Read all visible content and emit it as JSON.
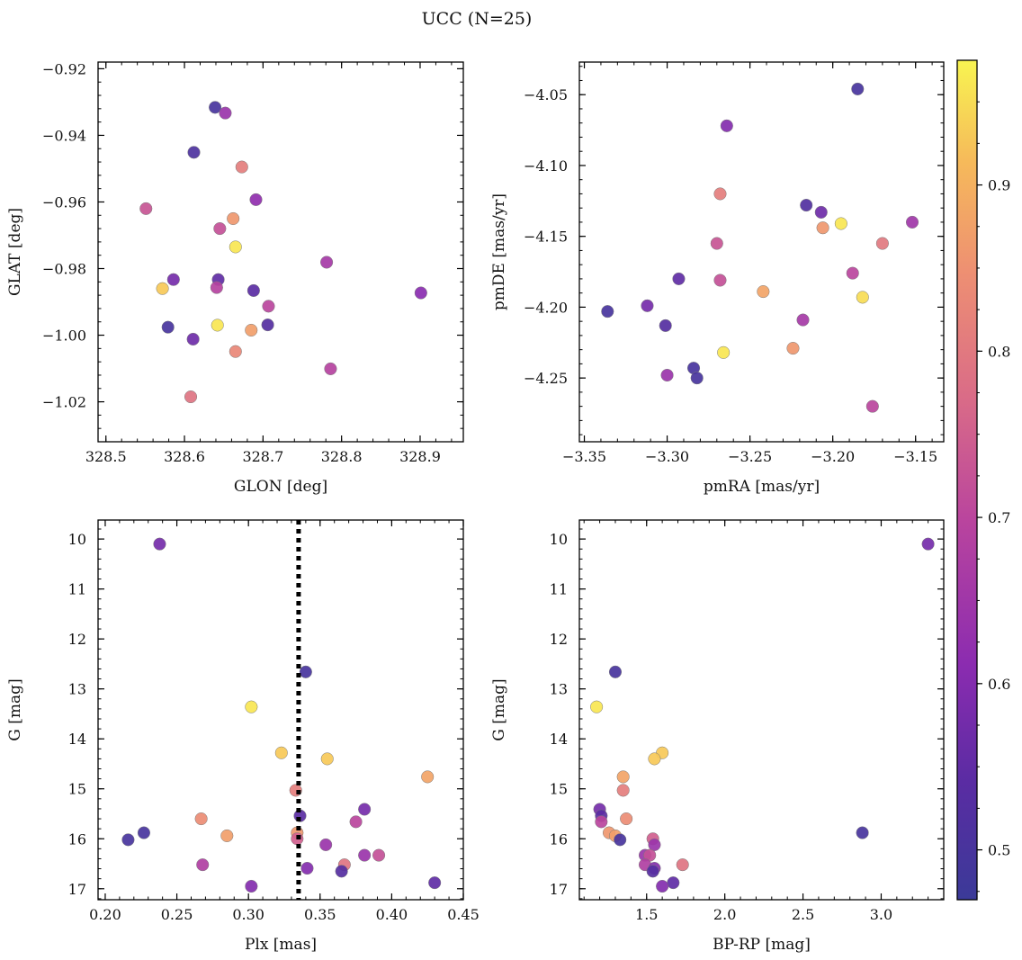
{
  "figure": {
    "title": "UCC (N=25)"
  },
  "colormap": {
    "name": "plasma",
    "range": [
      0.47,
      0.975
    ],
    "ticks": [
      0.5,
      0.6,
      0.7,
      0.8,
      0.9
    ],
    "tick_labels": [
      "0.5",
      "0.6",
      "0.7",
      "0.8",
      "0.9"
    ]
  },
  "chart_data": [
    {
      "type": "scatter",
      "title": "",
      "xlabel": "GLON [deg]",
      "ylabel": "GLAT [deg]",
      "xlim": [
        328.49,
        328.955
      ],
      "ylim": [
        -1.032,
        -0.918
      ],
      "y_inverted": false,
      "xticks": [
        328.5,
        328.6,
        328.7,
        328.8,
        328.9
      ],
      "xtick_labels": [
        "328.5",
        "328.6",
        "328.7",
        "328.8",
        "328.9"
      ],
      "yticks": [
        -1.02,
        -1.0,
        -0.98,
        -0.96,
        -0.94,
        -0.92
      ],
      "ytick_labels": [
        "−1.02",
        "−1.00",
        "−0.98",
        "−0.96",
        "−0.94",
        "−0.92"
      ],
      "points": [
        {
          "x": 328.639,
          "y": -0.9316,
          "c": 0.5
        },
        {
          "x": 328.652,
          "y": -0.9333,
          "c": 0.64
        },
        {
          "x": 328.612,
          "y": -0.9451,
          "c": 0.51
        },
        {
          "x": 328.673,
          "y": -0.9495,
          "c": 0.81
        },
        {
          "x": 328.691,
          "y": -0.9593,
          "c": 0.62
        },
        {
          "x": 328.551,
          "y": -0.962,
          "c": 0.73
        },
        {
          "x": 328.662,
          "y": -0.965,
          "c": 0.86
        },
        {
          "x": 328.645,
          "y": -0.968,
          "c": 0.72
        },
        {
          "x": 328.665,
          "y": -0.9735,
          "c": 0.96
        },
        {
          "x": 328.781,
          "y": -0.9781,
          "c": 0.66
        },
        {
          "x": 328.586,
          "y": -0.9833,
          "c": 0.58
        },
        {
          "x": 328.643,
          "y": -0.9833,
          "c": 0.55
        },
        {
          "x": 328.572,
          "y": -0.986,
          "c": 0.93
        },
        {
          "x": 328.641,
          "y": -0.9857,
          "c": 0.69
        },
        {
          "x": 328.688,
          "y": -0.9866,
          "c": 0.54
        },
        {
          "x": 328.901,
          "y": -0.9873,
          "c": 0.61
        },
        {
          "x": 328.707,
          "y": -0.9913,
          "c": 0.7
        },
        {
          "x": 328.579,
          "y": -0.9976,
          "c": 0.5
        },
        {
          "x": 328.642,
          "y": -0.997,
          "c": 0.96
        },
        {
          "x": 328.706,
          "y": -0.9969,
          "c": 0.53
        },
        {
          "x": 328.685,
          "y": -0.9985,
          "c": 0.87
        },
        {
          "x": 328.611,
          "y": -1.0012,
          "c": 0.57
        },
        {
          "x": 328.665,
          "y": -1.0049,
          "c": 0.83
        },
        {
          "x": 328.786,
          "y": -1.0101,
          "c": 0.69
        },
        {
          "x": 328.608,
          "y": -1.0185,
          "c": 0.79
        }
      ]
    },
    {
      "type": "scatter",
      "title": "",
      "xlabel": "pmRA [mas/yr]",
      "ylabel": "pmDE [mas/yr]",
      "xlim": [
        -3.353,
        -3.133
      ],
      "ylim": [
        -4.295,
        -4.027
      ],
      "y_inverted": false,
      "xticks": [
        -3.35,
        -3.3,
        -3.25,
        -3.2,
        -3.15
      ],
      "xtick_labels": [
        "−3.35",
        "−3.30",
        "−3.25",
        "−3.20",
        "−3.15"
      ],
      "yticks": [
        -4.25,
        -4.2,
        -4.15,
        -4.1,
        -4.05
      ],
      "ytick_labels": [
        "−4.25",
        "−4.20",
        "−4.15",
        "−4.10",
        "−4.05"
      ],
      "points": [
        {
          "x": -3.185,
          "y": -4.046,
          "c": 0.5
        },
        {
          "x": -3.264,
          "y": -4.072,
          "c": 0.6
        },
        {
          "x": -3.268,
          "y": -4.12,
          "c": 0.81
        },
        {
          "x": -3.216,
          "y": -4.128,
          "c": 0.52
        },
        {
          "x": -3.207,
          "y": -4.133,
          "c": 0.57
        },
        {
          "x": -3.152,
          "y": -4.14,
          "c": 0.65
        },
        {
          "x": -3.195,
          "y": -4.141,
          "c": 0.96
        },
        {
          "x": -3.206,
          "y": -4.144,
          "c": 0.86
        },
        {
          "x": -3.17,
          "y": -4.155,
          "c": 0.8
        },
        {
          "x": -3.27,
          "y": -4.155,
          "c": 0.73
        },
        {
          "x": -3.188,
          "y": -4.176,
          "c": 0.7
        },
        {
          "x": -3.268,
          "y": -4.181,
          "c": 0.72
        },
        {
          "x": -3.293,
          "y": -4.18,
          "c": 0.55
        },
        {
          "x": -3.242,
          "y": -4.189,
          "c": 0.88
        },
        {
          "x": -3.182,
          "y": -4.193,
          "c": 0.95
        },
        {
          "x": -3.312,
          "y": -4.199,
          "c": 0.58
        },
        {
          "x": -3.336,
          "y": -4.203,
          "c": 0.5
        },
        {
          "x": -3.218,
          "y": -4.209,
          "c": 0.66
        },
        {
          "x": -3.301,
          "y": -4.213,
          "c": 0.53
        },
        {
          "x": -3.224,
          "y": -4.229,
          "c": 0.86
        },
        {
          "x": -3.266,
          "y": -4.232,
          "c": 0.96
        },
        {
          "x": -3.284,
          "y": -4.243,
          "c": 0.5
        },
        {
          "x": -3.3,
          "y": -4.248,
          "c": 0.64
        },
        {
          "x": -3.282,
          "y": -4.25,
          "c": 0.5
        },
        {
          "x": -3.176,
          "y": -4.27,
          "c": 0.7
        }
      ]
    },
    {
      "type": "scatter",
      "title": "",
      "xlabel": "Plx [mas]",
      "ylabel": "G [mag]",
      "xlim": [
        0.195,
        0.45
      ],
      "ylim": [
        17.22,
        9.62
      ],
      "y_inverted": true,
      "xticks": [
        0.2,
        0.25,
        0.3,
        0.35,
        0.4,
        0.45
      ],
      "xtick_labels": [
        "0.20",
        "0.25",
        "0.30",
        "0.35",
        "0.40",
        "0.45"
      ],
      "yticks": [
        10,
        11,
        12,
        13,
        14,
        15,
        16,
        17
      ],
      "ytick_labels": [
        "10",
        "11",
        "12",
        "13",
        "14",
        "15",
        "16",
        "17"
      ],
      "vline": {
        "x": 0.335,
        "style": "dotted",
        "color": "#000000"
      },
      "points": [
        {
          "x": 0.238,
          "y": 10.1,
          "c": 0.58
        },
        {
          "x": 0.34,
          "y": 12.66,
          "c": 0.5
        },
        {
          "x": 0.302,
          "y": 13.36,
          "c": 0.96
        },
        {
          "x": 0.323,
          "y": 14.28,
          "c": 0.93
        },
        {
          "x": 0.355,
          "y": 14.4,
          "c": 0.93
        },
        {
          "x": 0.425,
          "y": 14.76,
          "c": 0.88
        },
        {
          "x": 0.333,
          "y": 15.03,
          "c": 0.81
        },
        {
          "x": 0.381,
          "y": 15.41,
          "c": 0.58
        },
        {
          "x": 0.336,
          "y": 15.54,
          "c": 0.54
        },
        {
          "x": 0.267,
          "y": 15.6,
          "c": 0.84
        },
        {
          "x": 0.375,
          "y": 15.66,
          "c": 0.7
        },
        {
          "x": 0.334,
          "y": 15.88,
          "c": 0.86
        },
        {
          "x": 0.227,
          "y": 15.88,
          "c": 0.5
        },
        {
          "x": 0.285,
          "y": 15.94,
          "c": 0.87
        },
        {
          "x": 0.334,
          "y": 16.0,
          "c": 0.75
        },
        {
          "x": 0.216,
          "y": 16.02,
          "c": 0.5
        },
        {
          "x": 0.354,
          "y": 16.12,
          "c": 0.64
        },
        {
          "x": 0.381,
          "y": 16.33,
          "c": 0.64
        },
        {
          "x": 0.391,
          "y": 16.33,
          "c": 0.72
        },
        {
          "x": 0.268,
          "y": 16.52,
          "c": 0.68
        },
        {
          "x": 0.367,
          "y": 16.52,
          "c": 0.79
        },
        {
          "x": 0.341,
          "y": 16.59,
          "c": 0.6
        },
        {
          "x": 0.365,
          "y": 16.65,
          "c": 0.53
        },
        {
          "x": 0.43,
          "y": 16.88,
          "c": 0.55
        },
        {
          "x": 0.302,
          "y": 16.95,
          "c": 0.6
        }
      ]
    },
    {
      "type": "scatter",
      "title": "",
      "xlabel": "BP-RP [mag]",
      "ylabel": "G [mag]",
      "xlim": [
        1.07,
        3.4
      ],
      "ylim": [
        17.22,
        9.62
      ],
      "y_inverted": true,
      "xticks": [
        1.5,
        2.0,
        2.5,
        3.0
      ],
      "xtick_labels": [
        "1.5",
        "2.0",
        "2.5",
        "3.0"
      ],
      "yticks": [
        10,
        11,
        12,
        13,
        14,
        15,
        16,
        17
      ],
      "ytick_labels": [
        "10",
        "11",
        "12",
        "13",
        "14",
        "15",
        "16",
        "17"
      ],
      "points": [
        {
          "x": 3.3,
          "y": 10.1,
          "c": 0.58
        },
        {
          "x": 1.3,
          "y": 12.66,
          "c": 0.5
        },
        {
          "x": 1.18,
          "y": 13.36,
          "c": 0.96
        },
        {
          "x": 1.6,
          "y": 14.28,
          "c": 0.93
        },
        {
          "x": 1.55,
          "y": 14.4,
          "c": 0.93
        },
        {
          "x": 1.35,
          "y": 14.76,
          "c": 0.88
        },
        {
          "x": 1.35,
          "y": 15.03,
          "c": 0.81
        },
        {
          "x": 1.2,
          "y": 15.41,
          "c": 0.58
        },
        {
          "x": 1.21,
          "y": 15.54,
          "c": 0.54
        },
        {
          "x": 1.37,
          "y": 15.6,
          "c": 0.84
        },
        {
          "x": 1.21,
          "y": 15.66,
          "c": 0.7
        },
        {
          "x": 1.26,
          "y": 15.88,
          "c": 0.86
        },
        {
          "x": 2.88,
          "y": 15.88,
          "c": 0.5
        },
        {
          "x": 1.3,
          "y": 15.94,
          "c": 0.87
        },
        {
          "x": 1.54,
          "y": 16.0,
          "c": 0.75
        },
        {
          "x": 1.33,
          "y": 16.02,
          "c": 0.5
        },
        {
          "x": 1.55,
          "y": 16.12,
          "c": 0.64
        },
        {
          "x": 1.49,
          "y": 16.33,
          "c": 0.64
        },
        {
          "x": 1.52,
          "y": 16.33,
          "c": 0.72
        },
        {
          "x": 1.49,
          "y": 16.52,
          "c": 0.68
        },
        {
          "x": 1.73,
          "y": 16.52,
          "c": 0.79
        },
        {
          "x": 1.55,
          "y": 16.59,
          "c": 0.6
        },
        {
          "x": 1.54,
          "y": 16.65,
          "c": 0.53
        },
        {
          "x": 1.67,
          "y": 16.88,
          "c": 0.55
        },
        {
          "x": 1.6,
          "y": 16.95,
          "c": 0.6
        }
      ]
    }
  ]
}
